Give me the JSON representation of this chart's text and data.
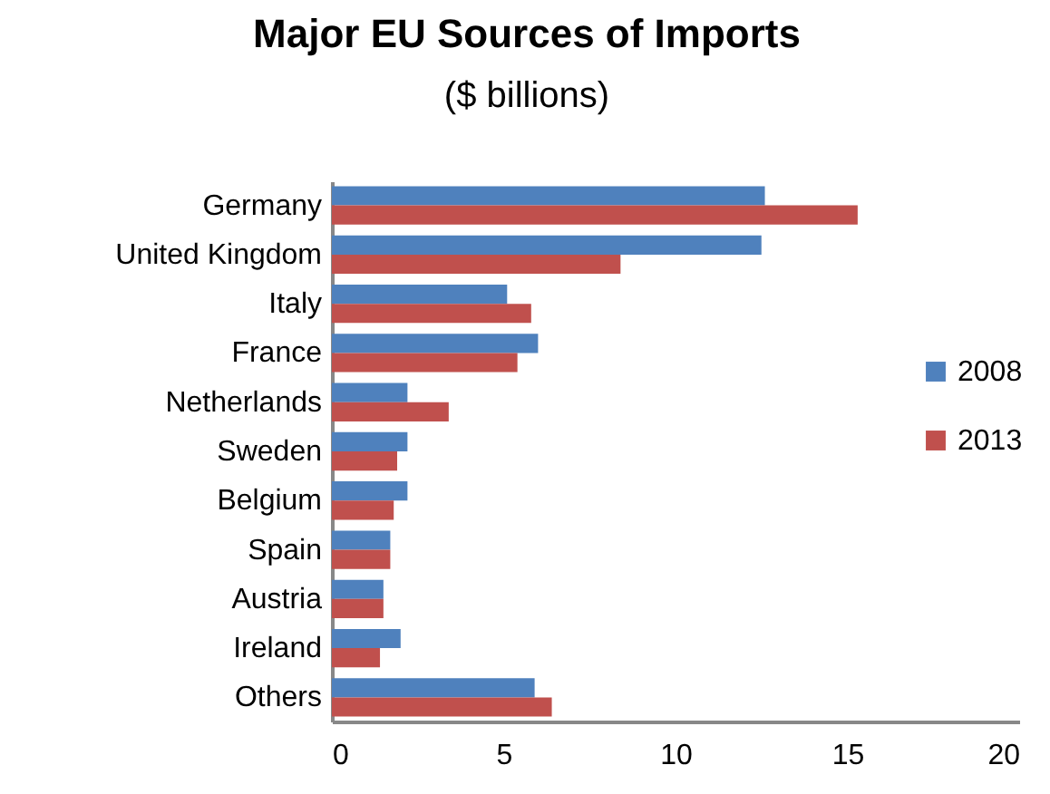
{
  "chart_data": {
    "type": "bar",
    "orientation": "horizontal",
    "title": "Major EU Sources of Imports",
    "subtitle": "($ billions)",
    "categories": [
      "Germany",
      "United Kingdom",
      "Italy",
      "France",
      "Netherlands",
      "Sweden",
      "Belgium",
      "Spain",
      "Austria",
      "Ireland",
      "Others"
    ],
    "series": [
      {
        "name": "2008",
        "color": "#4f81bd",
        "values": [
          12.6,
          12.5,
          5.1,
          6.0,
          2.2,
          2.2,
          2.2,
          1.7,
          1.5,
          2.0,
          5.9
        ]
      },
      {
        "name": "2013",
        "color": "#c0504d",
        "values": [
          15.3,
          8.4,
          5.8,
          5.4,
          3.4,
          1.9,
          1.8,
          1.7,
          1.5,
          1.4,
          6.4
        ]
      }
    ],
    "xlim": [
      0,
      20
    ],
    "xticks": [
      0,
      5,
      10,
      15,
      20
    ],
    "grid": false,
    "legend": "right"
  }
}
